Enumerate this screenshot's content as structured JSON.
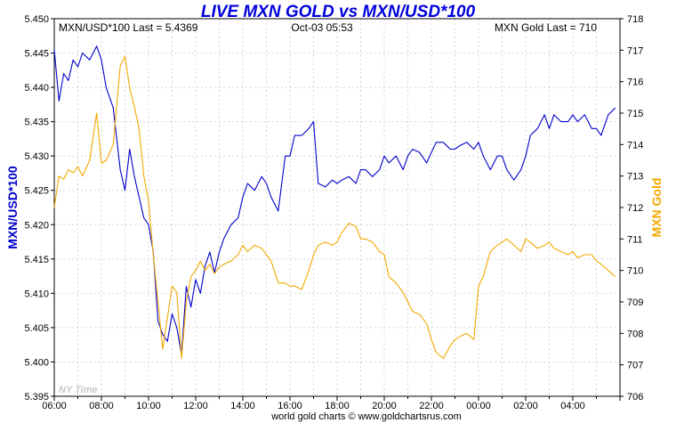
{
  "chart_data": {
    "type": "line",
    "title": "LIVE MXN GOLD vs MXN/USD*100",
    "header_left": "MXN/USD*100 Last = 5.4369",
    "header_center": "Oct-03  05:53",
    "header_right": "MXN Gold Last = 710",
    "ylabel_left": "MXN/USD*100",
    "ylabel_right": "MXN Gold",
    "watermark": "NY Time",
    "footer": "world gold charts © www.goldchartsrus.com",
    "x_ticks": [
      "06:00",
      "08:00",
      "10:00",
      "12:00",
      "14:00",
      "16:00",
      "18:00",
      "20:00",
      "22:00",
      "00:00",
      "02:00",
      "04:00"
    ],
    "y_left_ticks": [
      "5.395",
      "5.400",
      "5.405",
      "5.410",
      "5.415",
      "5.420",
      "5.425",
      "5.430",
      "5.435",
      "5.440",
      "5.445",
      "5.450"
    ],
    "y_right_ticks": [
      "706",
      "707",
      "708",
      "709",
      "710",
      "711",
      "712",
      "713",
      "714",
      "715",
      "716",
      "717",
      "718"
    ],
    "ylim_left": [
      5.395,
      5.45
    ],
    "ylim_right": [
      706,
      718
    ],
    "xlim_hours": [
      0,
      24
    ],
    "grid": true,
    "colors": {
      "left": "#0000cc",
      "right": "#f2a900",
      "title": "#0000dd",
      "watermark": "#c8c8c8"
    },
    "series": [
      {
        "name": "MXN/USD*100",
        "axis": "left",
        "x": [
          0,
          0.2,
          0.4,
          0.6,
          0.8,
          1.0,
          1.2,
          1.5,
          1.8,
          2.0,
          2.2,
          2.5,
          2.8,
          3.0,
          3.2,
          3.4,
          3.6,
          3.8,
          4.0,
          4.2,
          4.4,
          4.6,
          4.8,
          5.0,
          5.2,
          5.4,
          5.6,
          5.8,
          6.0,
          6.2,
          6.4,
          6.6,
          6.8,
          7.0,
          7.2,
          7.5,
          7.8,
          8.0,
          8.2,
          8.5,
          8.8,
          9.0,
          9.2,
          9.5,
          9.8,
          10.0,
          10.2,
          10.5,
          10.8,
          11.0,
          11.2,
          11.5,
          11.8,
          12.0,
          12.2,
          12.5,
          12.8,
          13.0,
          13.2,
          13.5,
          13.8,
          14.0,
          14.2,
          14.5,
          14.8,
          15.0,
          15.2,
          15.5,
          15.8,
          16.0,
          16.2,
          16.5,
          16.8,
          17.0,
          17.2,
          17.5,
          17.8,
          18.0,
          18.2,
          18.5,
          18.8,
          19.0,
          19.2,
          19.5,
          19.8,
          20.0,
          20.2,
          20.5,
          20.8,
          21.0,
          21.2,
          21.5,
          21.8,
          22.0,
          22.2,
          22.5,
          22.8,
          23.0,
          23.2,
          23.5,
          23.8
        ],
        "values": [
          5.4455,
          5.438,
          5.442,
          5.441,
          5.444,
          5.443,
          5.445,
          5.444,
          5.446,
          5.444,
          5.44,
          5.437,
          5.428,
          5.425,
          5.431,
          5.427,
          5.424,
          5.421,
          5.42,
          5.416,
          5.406,
          5.404,
          5.403,
          5.407,
          5.405,
          5.401,
          5.411,
          5.408,
          5.412,
          5.41,
          5.414,
          5.416,
          5.413,
          5.416,
          5.418,
          5.42,
          5.421,
          5.424,
          5.426,
          5.425,
          5.427,
          5.426,
          5.424,
          5.422,
          5.43,
          5.43,
          5.433,
          5.433,
          5.434,
          5.435,
          5.426,
          5.4255,
          5.4265,
          5.426,
          5.4265,
          5.427,
          5.426,
          5.428,
          5.428,
          5.427,
          5.428,
          5.43,
          5.429,
          5.43,
          5.428,
          5.43,
          5.431,
          5.4305,
          5.429,
          5.4305,
          5.432,
          5.432,
          5.431,
          5.431,
          5.4315,
          5.432,
          5.431,
          5.432,
          5.43,
          5.428,
          5.43,
          5.43,
          5.428,
          5.4265,
          5.428,
          5.43,
          5.433,
          5.434,
          5.436,
          5.434,
          5.436,
          5.435,
          5.435,
          5.436,
          5.435,
          5.436,
          5.434,
          5.434,
          5.433,
          5.436,
          5.437
        ]
      },
      {
        "name": "MXN Gold",
        "axis": "right",
        "x": [
          0,
          0.2,
          0.4,
          0.6,
          0.8,
          1.0,
          1.2,
          1.5,
          1.8,
          2.0,
          2.2,
          2.5,
          2.8,
          3.0,
          3.2,
          3.4,
          3.6,
          3.8,
          4.0,
          4.2,
          4.4,
          4.6,
          4.8,
          5.0,
          5.2,
          5.4,
          5.6,
          5.8,
          6.0,
          6.2,
          6.4,
          6.6,
          6.8,
          7.0,
          7.2,
          7.5,
          7.8,
          8.0,
          8.2,
          8.5,
          8.8,
          9.0,
          9.2,
          9.5,
          9.8,
          10.0,
          10.2,
          10.5,
          10.8,
          11.0,
          11.2,
          11.5,
          11.8,
          12.0,
          12.2,
          12.5,
          12.8,
          13.0,
          13.2,
          13.5,
          13.8,
          14.0,
          14.2,
          14.5,
          14.8,
          15.0,
          15.2,
          15.5,
          15.8,
          16.0,
          16.2,
          16.5,
          16.8,
          17.0,
          17.2,
          17.5,
          17.8,
          18.0,
          18.2,
          18.5,
          18.8,
          19.0,
          19.2,
          19.5,
          19.8,
          20.0,
          20.2,
          20.5,
          20.8,
          21.0,
          21.2,
          21.5,
          21.8,
          22.0,
          22.2,
          22.5,
          22.8,
          23.0,
          23.2,
          23.5,
          23.8
        ],
        "values": [
          712.0,
          713.0,
          712.9,
          713.2,
          713.1,
          713.3,
          713.0,
          713.5,
          715.0,
          713.4,
          713.5,
          714.0,
          716.5,
          716.8,
          715.8,
          715.2,
          714.5,
          713.0,
          712.2,
          710.5,
          709.0,
          707.5,
          708.5,
          709.5,
          709.3,
          707.2,
          709.0,
          709.8,
          710.0,
          710.3,
          710.0,
          710.2,
          709.9,
          710.1,
          710.2,
          710.3,
          710.5,
          710.8,
          710.6,
          710.8,
          710.7,
          710.5,
          710.3,
          709.6,
          709.6,
          709.5,
          709.5,
          709.4,
          710.0,
          710.5,
          710.8,
          710.9,
          710.8,
          710.9,
          711.2,
          711.5,
          711.4,
          711.0,
          711.0,
          710.9,
          710.6,
          710.5,
          709.8,
          709.6,
          709.3,
          709.0,
          708.7,
          708.6,
          708.3,
          707.8,
          707.4,
          707.2,
          707.6,
          707.8,
          707.9,
          708.0,
          707.8,
          709.5,
          709.8,
          710.6,
          710.8,
          710.9,
          711.0,
          710.8,
          710.6,
          711.0,
          710.9,
          710.7,
          710.8,
          710.9,
          710.7,
          710.6,
          710.5,
          710.6,
          710.4,
          710.5,
          710.5,
          710.3,
          710.2,
          710.0,
          709.8
        ]
      }
    ]
  }
}
